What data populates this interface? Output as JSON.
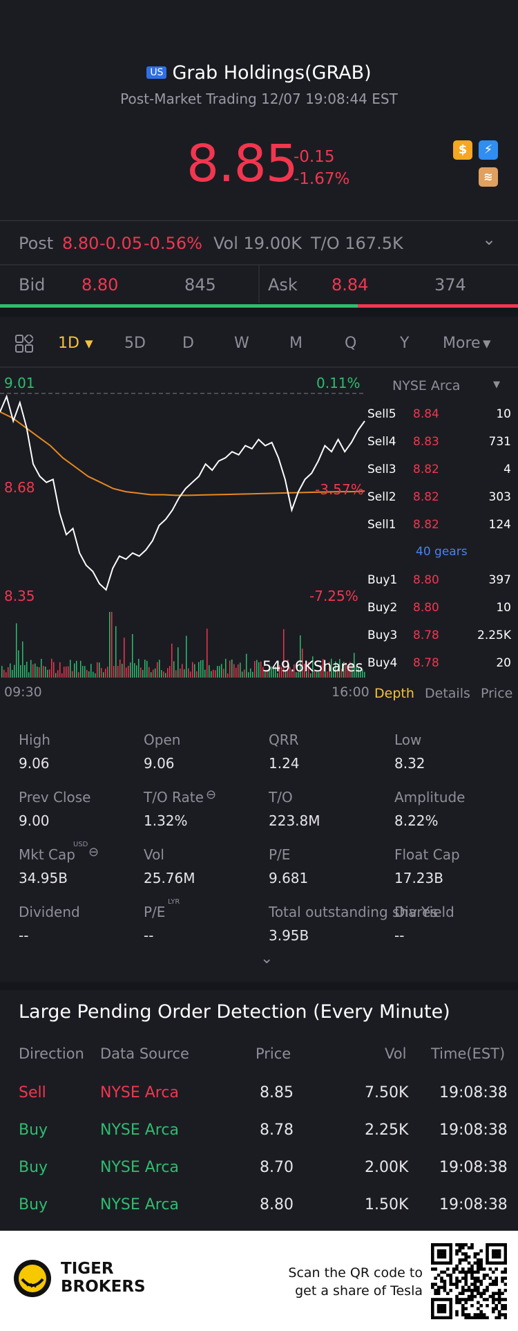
{
  "header": {
    "market_badge": "US",
    "title": "Grab Holdings(GRAB)",
    "subtitle": "Post-Market Trading 12/07 19:08:44 EST",
    "price": "8.85",
    "change": "-0.15",
    "change_pct": "-1.67%",
    "icons": [
      "dollar-icon",
      "flash-icon",
      "education-icon"
    ]
  },
  "post": {
    "label": "Post",
    "price": "8.80",
    "change": "-0.05",
    "change_pct": "-0.56%",
    "vol": "Vol 19.00K",
    "turnover": "T/O 167.5K"
  },
  "bidask": {
    "bid_label": "Bid",
    "bid_price": "8.80",
    "bid_size": "845",
    "ask_label": "Ask",
    "ask_price": "8.84",
    "ask_size": "374",
    "bid_ratio": 0.69
  },
  "tabs": [
    "1D",
    "5D",
    "D",
    "W",
    "M",
    "Q",
    "Y",
    "More"
  ],
  "chart": {
    "high_label": "9.01",
    "high_pct": "0.11%",
    "mid_label": "8.68",
    "mid_pct": "-3.57%",
    "low_label": "8.35",
    "low_pct": "-7.25%",
    "volume_label": "549.6KShares",
    "time_start": "09:30",
    "time_end": "16:00"
  },
  "chart_data": {
    "type": "line",
    "title": "",
    "ylim": [
      8.35,
      9.01
    ],
    "series": [
      {
        "values": [
          8.95,
          9.0,
          8.92,
          8.98,
          8.9,
          8.78,
          8.74,
          8.72,
          8.73,
          8.62,
          8.55,
          8.57,
          8.49,
          8.45,
          8.43,
          8.39,
          8.37,
          8.44,
          8.48,
          8.47,
          8.49,
          8.48,
          8.5,
          8.53,
          8.58,
          8.6,
          8.63,
          8.67,
          8.7,
          8.72,
          8.74,
          8.78,
          8.76,
          8.79,
          8.8,
          8.82,
          8.81,
          8.84,
          8.83,
          8.86,
          8.84,
          8.85,
          8.8,
          8.73,
          8.63,
          8.69,
          8.73,
          8.75,
          8.79,
          8.84,
          8.82,
          8.86,
          8.82,
          8.85,
          8.89,
          8.92
        ]
      },
      {
        "values": [
          8.95,
          8.93,
          8.9,
          8.87,
          8.84,
          8.8,
          8.77,
          8.74,
          8.72,
          8.7,
          8.69,
          8.685,
          8.68,
          8.68,
          8.678,
          8.678,
          8.679,
          8.68,
          8.681,
          8.682,
          8.683,
          8.684,
          8.685,
          8.686,
          8.687,
          8.688,
          8.689,
          8.69,
          8.69,
          8.692
        ]
      }
    ]
  },
  "order_book": {
    "exchange": "NYSE Arca",
    "gears": "40 gears",
    "sells": [
      {
        "label": "Sell5",
        "price": "8.84",
        "size": "10"
      },
      {
        "label": "Sell4",
        "price": "8.83",
        "size": "731"
      },
      {
        "label": "Sell3",
        "price": "8.82",
        "size": "4"
      },
      {
        "label": "Sell2",
        "price": "8.82",
        "size": "303"
      },
      {
        "label": "Sell1",
        "price": "8.82",
        "size": "124"
      }
    ],
    "buys": [
      {
        "label": "Buy1",
        "price": "8.80",
        "size": "397"
      },
      {
        "label": "Buy2",
        "price": "8.80",
        "size": "10"
      },
      {
        "label": "Buy3",
        "price": "8.78",
        "size": "2.25K"
      },
      {
        "label": "Buy4",
        "price": "8.78",
        "size": "20"
      }
    ],
    "tabs": [
      "Depth",
      "Details",
      "Price"
    ]
  },
  "stats": [
    {
      "label": "High",
      "value": "9.06"
    },
    {
      "label": "Open",
      "value": "9.06"
    },
    {
      "label": "QRR",
      "value": "1.24"
    },
    {
      "label": "Low",
      "value": "8.32"
    },
    {
      "label": "Prev Close",
      "value": "9.00"
    },
    {
      "label": "T/O Rate",
      "value": "1.32%"
    },
    {
      "label": "T/O",
      "value": "223.8M"
    },
    {
      "label": "Amplitude",
      "value": "8.22%"
    },
    {
      "label": "Mkt Cap",
      "value": "34.95B"
    },
    {
      "label": "Vol",
      "value": "25.76M"
    },
    {
      "label": "P/E",
      "value": "9.681"
    },
    {
      "label": "Float Cap",
      "value": "17.23B"
    },
    {
      "label": "Dividend",
      "value": "--"
    },
    {
      "label": "P/E",
      "value": "--"
    },
    {
      "label": "Total outstanding shares",
      "value": "3.95B"
    },
    {
      "label": "Div Yield",
      "value": "--"
    }
  ],
  "stat_sups": {
    "usd": "USD",
    "lyr": "LYR"
  },
  "large_orders": {
    "title": "Large Pending Order Detection (Every Minute)",
    "columns": [
      "Direction",
      "Data Source",
      "Price",
      "Vol",
      "Time(EST)"
    ],
    "rows": [
      {
        "direction": "Sell",
        "source": "NYSE Arca",
        "price": "8.85",
        "vol": "7.50K",
        "time": "19:08:38"
      },
      {
        "direction": "Buy",
        "source": "NYSE Arca",
        "price": "8.78",
        "vol": "2.25K",
        "time": "19:08:38"
      },
      {
        "direction": "Buy",
        "source": "NYSE Arca",
        "price": "8.70",
        "vol": "2.00K",
        "time": "19:08:38"
      },
      {
        "direction": "Buy",
        "source": "NYSE Arca",
        "price": "8.80",
        "vol": "1.50K",
        "time": "19:08:38"
      }
    ]
  },
  "footer": {
    "brand_line1": "TIGER",
    "brand_line2": "BROKERS",
    "scan_line1": "Scan the QR code to",
    "scan_line2": "get a share of Tesla"
  },
  "colors": {
    "red": "#f2364f",
    "green": "#2ebd6e",
    "accent": "#f5c33b",
    "blue": "#4a82f0",
    "bg": "#1b1c22"
  }
}
